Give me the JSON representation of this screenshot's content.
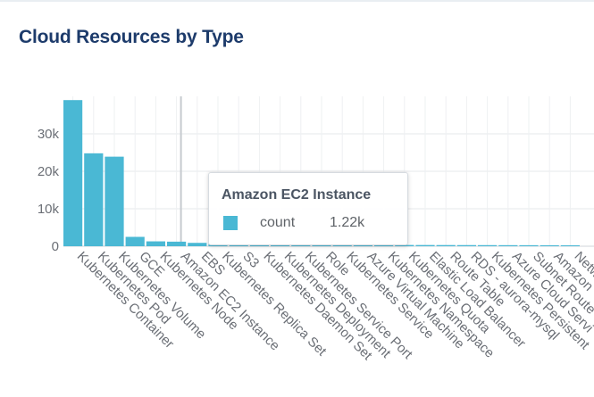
{
  "card": {
    "title": "Cloud Resources by Type"
  },
  "tooltip": {
    "title": "Amazon EC2 Instance",
    "series_key": "count",
    "value_label": "1.22k",
    "swatch_color": "#4ab8d4"
  },
  "chart_data": {
    "type": "bar",
    "title": "",
    "xlabel": "",
    "ylabel": "",
    "ylim": [
      0,
      40000
    ],
    "yticks": [
      0,
      10000,
      20000,
      30000
    ],
    "ytick_labels": [
      "0",
      "10k",
      "20k",
      "30k"
    ],
    "grid": true,
    "bar_color": "#4ab8d4",
    "highlighted_category": "Amazon EC2 Instance",
    "categories": [
      "Kubernetes Container",
      "Kubernetes Pod",
      "Kubernetes Volume",
      "GCE",
      "Kubernetes Node",
      "Amazon EC2 Instance",
      "EBS",
      "Kubernetes Replica Set",
      "S3",
      "Kubernetes Daemon Set",
      "Kubernetes Deployment",
      "Kubernetes Service Port",
      "Role",
      "Kubernetes Service",
      "Azure Virtual Machine",
      "Kubernetes Namespace",
      "Kubernetes Quota",
      "Elastic Load Balancer",
      "Route Table",
      "RDS - aurora-mysql",
      "Kubernetes Persistent",
      "Azure Cloud Servi",
      "Subnet Route",
      "Amazon",
      "Netwo"
    ],
    "values": [
      39000,
      24800,
      23900,
      2500,
      1300,
      1220,
      900,
      700,
      600,
      500,
      450,
      420,
      400,
      380,
      350,
      340,
      330,
      320,
      310,
      300,
      290,
      280,
      270,
      260,
      250
    ]
  }
}
